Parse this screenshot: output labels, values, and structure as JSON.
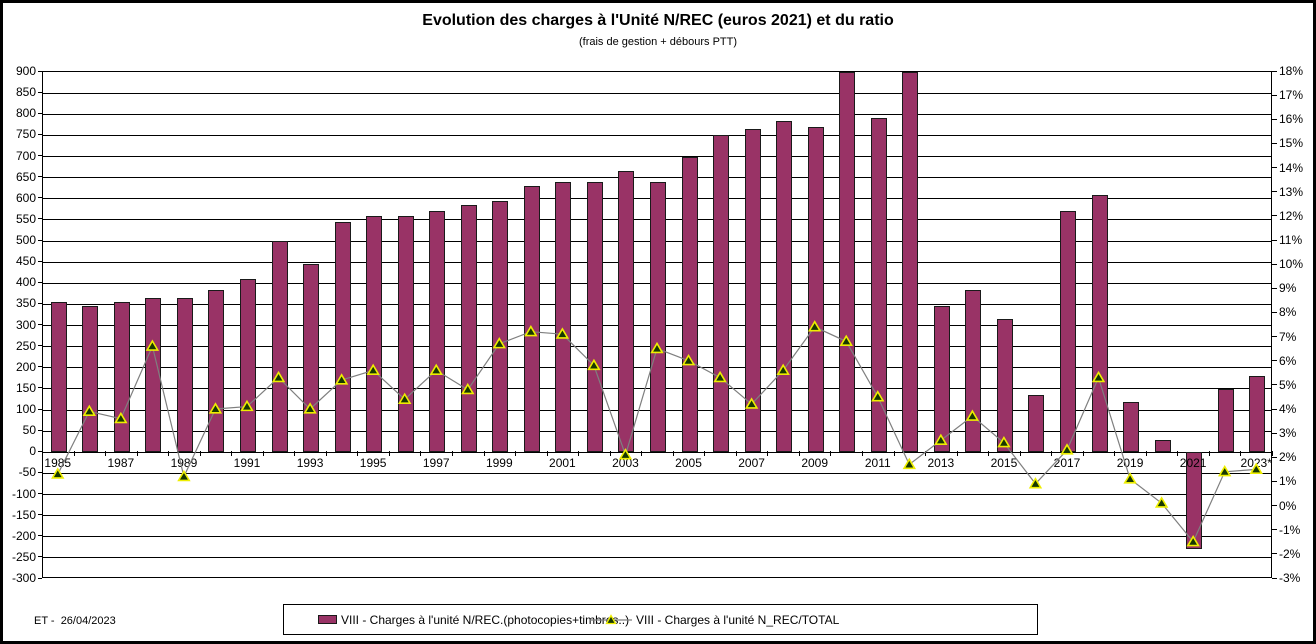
{
  "header": {
    "title": "Evolution des charges à l'Unité N/REC (euros 2021) et du ratio",
    "subtitle": "(frais de gestion + débours PTT)"
  },
  "footer": {
    "stamp": "ET -  26/04/2023"
  },
  "legend": {
    "bars_label": "VIII - Charges à l'unité N/REC.(photocopies+timbres..)",
    "line_label": "VIII - Charges à l'unité N_REC/TOTAL"
  },
  "colors": {
    "bar_fill": "#993366",
    "bar_border": "#1a1a1a",
    "line": "#7f7f7f",
    "marker_fill": "#173800",
    "marker_border": "#eeee00",
    "grid": "#000000"
  },
  "chart_data": {
    "type": "bar",
    "subtype": "bar+line combo, dual axis",
    "title": "Evolution des charges à l'Unité N/REC (euros 2021) et du ratio",
    "subtitle": "(frais de gestion + débours PTT)",
    "x": [
      1985,
      1986,
      1987,
      1988,
      1989,
      1990,
      1991,
      1992,
      1993,
      1994,
      1995,
      1996,
      1997,
      1998,
      1999,
      2000,
      2001,
      2002,
      2003,
      2004,
      2005,
      2006,
      2007,
      2008,
      2009,
      2010,
      2011,
      2012,
      2013,
      2014,
      2015,
      2016,
      2017,
      2018,
      2019,
      2020,
      2021,
      2022,
      2023
    ],
    "x_tick_labels": [
      "1985",
      "1987",
      "1989",
      "1991",
      "1993",
      "1995",
      "1997",
      "1999",
      "2001",
      "2003",
      "2005",
      "2007",
      "2009",
      "2011",
      "2013",
      "2015",
      "2017",
      "2019",
      "2021",
      "2023*"
    ],
    "series": [
      {
        "name": "VIII - Charges à l'unité N/REC.(photocopies+timbres..)",
        "type": "bar",
        "axis": "left",
        "values": [
          355,
          345,
          355,
          365,
          365,
          385,
          410,
          500,
          445,
          545,
          560,
          560,
          570,
          585,
          595,
          630,
          640,
          640,
          665,
          640,
          700,
          750,
          765,
          785,
          770,
          900,
          790,
          900,
          345,
          385,
          315,
          135,
          570,
          610,
          120,
          30,
          -230,
          150,
          180
        ]
      },
      {
        "name": "VIII - Charges à l'unité N_REC/TOTAL",
        "type": "line",
        "axis": "right",
        "unit": "%",
        "values": [
          1.3,
          3.9,
          3.6,
          6.6,
          1.2,
          4.0,
          4.1,
          5.3,
          4.0,
          5.2,
          5.6,
          4.4,
          5.6,
          4.8,
          6.7,
          7.2,
          7.1,
          5.8,
          2.1,
          6.5,
          6.0,
          5.3,
          4.2,
          5.6,
          7.4,
          6.8,
          4.5,
          1.7,
          2.7,
          3.7,
          2.6,
          0.9,
          2.3,
          5.3,
          1.1,
          0.1,
          -1.5,
          1.4,
          1.5
        ]
      }
    ],
    "left_axis": {
      "min": -300,
      "max": 900,
      "step": 50
    },
    "right_axis": {
      "min": -3,
      "max": 18,
      "step": 1,
      "format": "percent"
    },
    "grid": "horizontal gridlines at every left-axis step",
    "legend_position": "bottom",
    "notes": "Bars for 2010 and 2012 exceed the axis maximum and are clipped at 900."
  }
}
